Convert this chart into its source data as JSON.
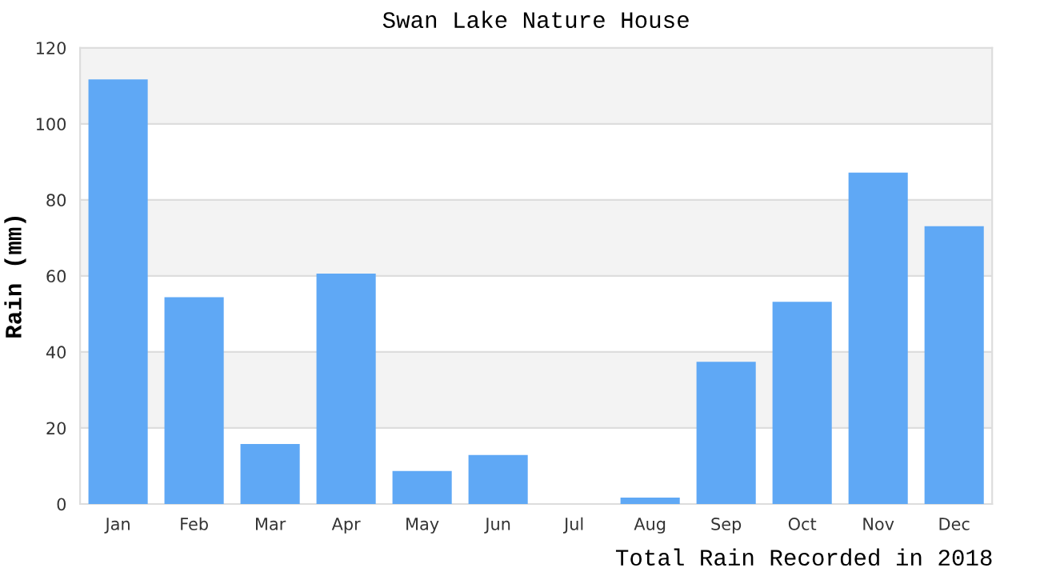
{
  "chart_data": {
    "type": "bar",
    "title": "Swan Lake Nature House",
    "ylabel": "Rain (mm)",
    "categories": [
      "Jan",
      "Feb",
      "Mar",
      "Apr",
      "May",
      "Jun",
      "Jul",
      "Aug",
      "Sep",
      "Oct",
      "Nov",
      "Dec"
    ],
    "values": [
      111.7,
      54.4,
      15.8,
      60.6,
      8.7,
      12.9,
      0,
      1.7,
      37.4,
      53.2,
      87.2,
      73.1
    ],
    "color": "#5fa8f5",
    "ylim": [
      0,
      120
    ],
    "yticks": [
      0,
      20,
      40,
      60,
      80,
      100,
      120
    ],
    "grid": "y",
    "bands": [
      {
        "axis": "y",
        "from": 20,
        "to": 40,
        "color": "#f3f3f3"
      },
      {
        "axis": "y",
        "from": 60,
        "to": 80,
        "color": "#f3f3f3"
      },
      {
        "axis": "y",
        "from": 100,
        "to": 120,
        "color": "#f3f3f3"
      }
    ],
    "annotations": [
      "Total Rain Recorded in 2018"
    ]
  }
}
